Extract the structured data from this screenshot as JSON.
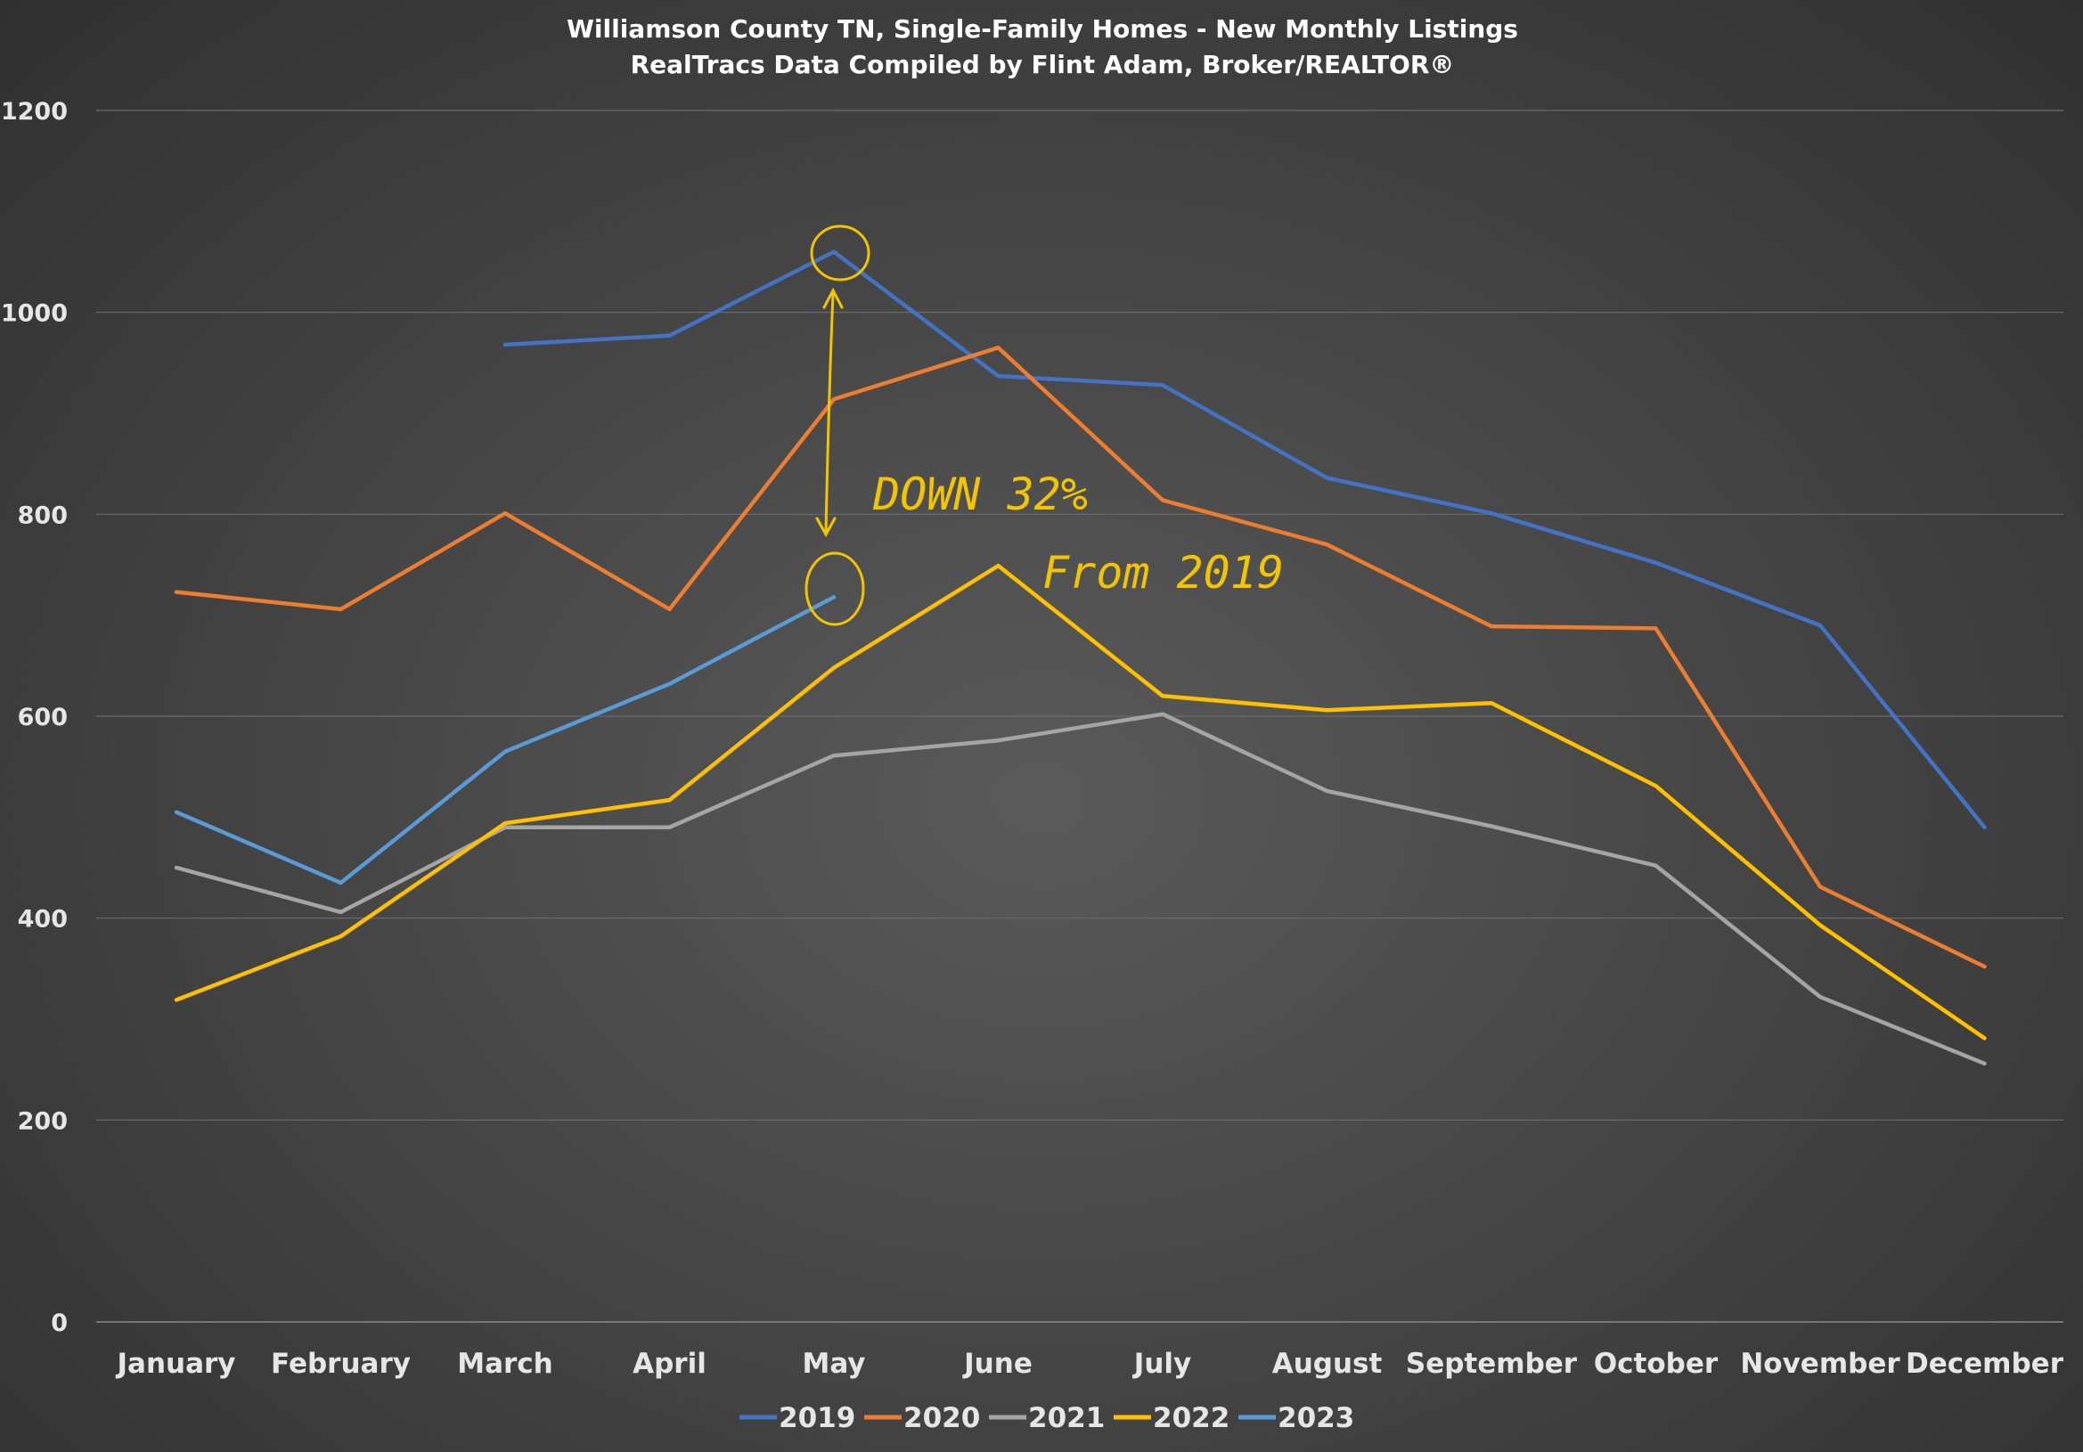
{
  "chart_data": {
    "type": "line",
    "title": "Williamson County TN, Single-Family Homes - New Monthly Listings",
    "subtitle": "RealTracs Data Compiled by Flint Adam, Broker/REALTOR®",
    "xlabel": "",
    "ylabel": "",
    "ylim": [
      0,
      1200
    ],
    "yticks": [
      0,
      200,
      400,
      600,
      800,
      1000,
      1200
    ],
    "grid": true,
    "legend_position": "bottom",
    "categories": [
      "January",
      "February",
      "March",
      "April",
      "May",
      "June",
      "July",
      "August",
      "September",
      "October",
      "November",
      "December"
    ],
    "series": [
      {
        "name": "2019",
        "color": "#4472c4",
        "values": [
          null,
          null,
          968,
          977,
          1060,
          937,
          928,
          836,
          801,
          752,
          690,
          490
        ]
      },
      {
        "name": "2020",
        "color": "#ed7d31",
        "values": [
          723,
          706,
          801,
          706,
          914,
          965,
          814,
          770,
          689,
          687,
          431,
          352
        ]
      },
      {
        "name": "2021",
        "color": "#a5a5a5",
        "values": [
          450,
          406,
          490,
          490,
          561,
          576,
          602,
          526,
          491,
          452,
          322,
          256
        ]
      },
      {
        "name": "2022",
        "color": "#ffc000",
        "values": [
          319,
          382,
          494,
          517,
          648,
          749,
          620,
          606,
          613,
          531,
          393,
          281
        ]
      },
      {
        "name": "2023",
        "color": "#5b9bd5",
        "values": [
          505,
          435,
          565,
          632,
          718,
          null,
          null,
          null,
          null,
          null,
          null,
          null
        ]
      }
    ],
    "annotations": [
      "DOWN 32%",
      "From 2019"
    ]
  }
}
